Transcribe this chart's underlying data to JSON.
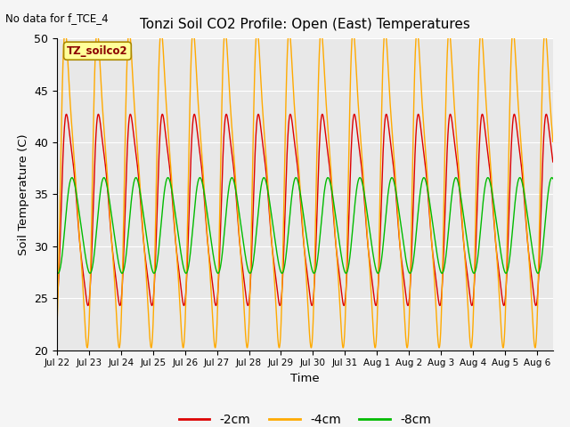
{
  "title": "Tonzi Soil CO2 Profile: Open (East) Temperatures",
  "ylabel": "Soil Temperature (C)",
  "xlabel": "Time",
  "note": "No data for f_TCE_4",
  "legend_label": "TZ_soilco2",
  "ylim": [
    20,
    50
  ],
  "yticks": [
    20,
    25,
    30,
    35,
    40,
    45,
    50
  ],
  "line_colors": {
    "m2cm": "#dd0000",
    "m4cm": "#ffaa00",
    "m8cm": "#00bb00"
  },
  "background_color": "#e8e8e8",
  "num_days": 15.5,
  "tick_labels": [
    "Jul 22",
    "Jul 23",
    "Jul 24",
    "Jul 25",
    "Jul 26",
    "Jul 27",
    "Jul 28",
    "Jul 29",
    "Jul 30",
    "Jul 31",
    "Aug 1",
    "Aug 2",
    "Aug 3",
    "Aug 4",
    "Aug 5",
    "Aug 6"
  ],
  "figsize": [
    6.4,
    4.8
  ],
  "dpi": 100
}
